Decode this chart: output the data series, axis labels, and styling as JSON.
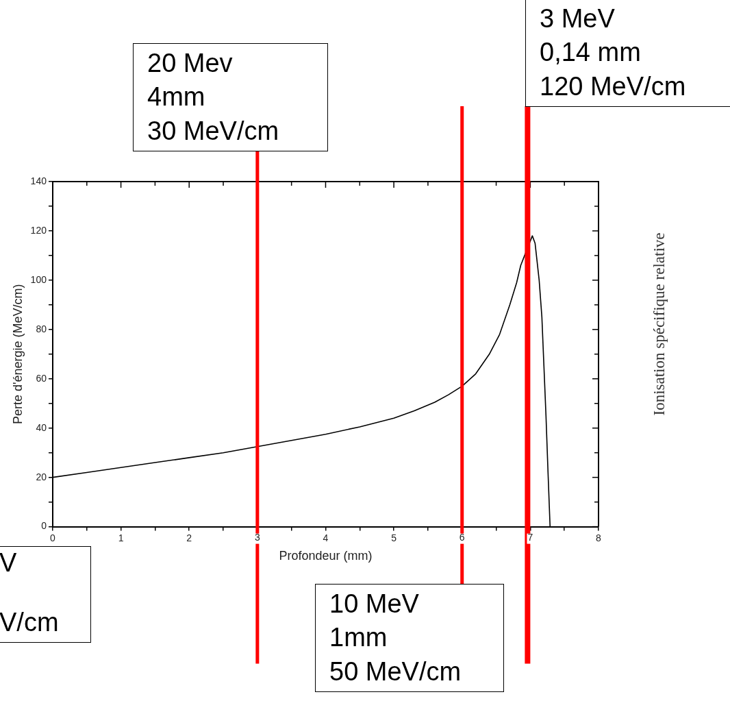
{
  "chart_data": {
    "type": "line",
    "xlabel": "Profondeur (mm)",
    "ylabel": "Perte d'énergie (MeV/cm)",
    "series": [
      {
        "color": "#000000",
        "x": [
          0,
          0.5,
          1,
          1.5,
          2,
          2.5,
          3,
          3.5,
          4,
          4.5,
          5,
          5.3,
          5.6,
          5.8,
          6,
          6.2,
          6.4,
          6.55,
          6.7,
          6.8,
          6.86,
          7.03,
          7.07,
          7.13,
          7.17,
          7.2,
          7.23,
          7.26,
          7.29
        ],
        "values": [
          20,
          22,
          24,
          26,
          28,
          30,
          32.5,
          35,
          37.5,
          40.5,
          44,
          47,
          50.5,
          53.5,
          57,
          62,
          70,
          78,
          90,
          99,
          106,
          118,
          115,
          100,
          85,
          65,
          45,
          22,
          0
        ]
      }
    ],
    "xlim": [
      0,
      8
    ],
    "ylim": [
      0,
      140
    ],
    "xticks": [
      0,
      {
        "value": 0.5,
        "label": null
      },
      1,
      {
        "value": 1.5,
        "label": null
      },
      2,
      {
        "value": 2.5,
        "label": null
      },
      3,
      {
        "value": 3.5,
        "label": null
      },
      4,
      {
        "value": 4.5,
        "label": null
      },
      5,
      {
        "value": 5.5,
        "label": null
      },
      6,
      {
        "value": 6.5,
        "label": null
      },
      7,
      {
        "value": 7.5,
        "label": null
      },
      8
    ],
    "yticks": [
      0,
      {
        "value": 10,
        "label": null
      },
      20,
      {
        "value": 30,
        "label": null
      },
      40,
      {
        "value": 50,
        "label": null
      },
      60,
      {
        "value": 70,
        "label": null
      },
      80,
      {
        "value": 90,
        "label": null
      },
      100,
      {
        "value": 110,
        "label": null
      },
      120,
      {
        "value": 130,
        "label": null
      },
      140
    ],
    "grid": false,
    "legend": false,
    "marker": "none",
    "line_style": "solid",
    "ref_lines": [
      {
        "axis": "x",
        "value": 3,
        "label": "20 Mev\n4mm\n30 MeV/cm",
        "color": "#ff0000"
      },
      {
        "axis": "x",
        "value": 6,
        "label": "10 MeV\n1mm\n50 MeV/cm",
        "color": "#ff0000"
      },
      {
        "axis": "x",
        "value": 6.96,
        "label": "3 MeV\n0,14 mm\n120 MeV/cm",
        "color": "#ff0000"
      }
    ],
    "annotations": [
      "V\n\nV/cm",
      "Ionisation spécifique relative"
    ]
  }
}
